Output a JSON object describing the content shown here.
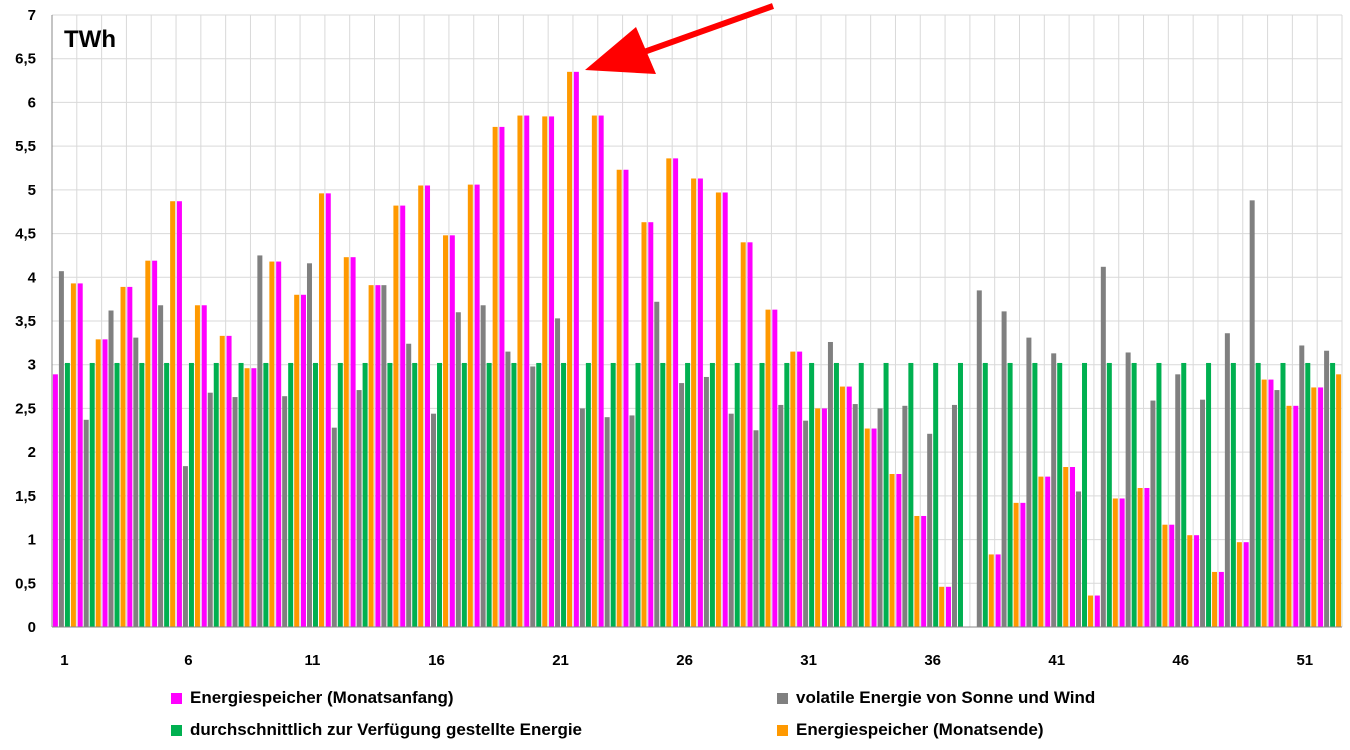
{
  "chart_data": {
    "type": "bar",
    "unit_label": "TWh",
    "ylim": [
      0,
      7
    ],
    "y_ticks": [
      "0",
      "0,5",
      "1",
      "1,5",
      "2",
      "2,5",
      "3",
      "3,5",
      "4",
      "4,5",
      "5",
      "5,5",
      "6",
      "6,5",
      "7"
    ],
    "x_tick_labels": [
      "1",
      "6",
      "11",
      "16",
      "21",
      "26",
      "31",
      "36",
      "41",
      "46",
      "51"
    ],
    "categories": [
      1,
      2,
      3,
      4,
      5,
      6,
      7,
      8,
      9,
      10,
      11,
      12,
      13,
      14,
      15,
      16,
      17,
      18,
      19,
      20,
      21,
      22,
      23,
      24,
      25,
      26,
      27,
      28,
      29,
      30,
      31,
      32,
      33,
      34,
      35,
      36,
      37,
      38,
      39,
      40,
      41,
      42,
      43,
      44,
      45,
      46,
      47,
      48,
      49,
      50,
      51,
      52
    ],
    "grid": true,
    "legend_position": "bottom",
    "annotation": "red arrow pointing to peak at week 22",
    "series": [
      {
        "name": "Energiespeicher (Monatsanfang)",
        "color": "#FF00FF",
        "values": [
          2.89,
          3.93,
          3.29,
          3.89,
          4.19,
          4.87,
          3.68,
          3.33,
          2.96,
          4.18,
          3.8,
          4.96,
          4.23,
          3.91,
          4.82,
          5.05,
          4.48,
          5.06,
          5.72,
          5.85,
          5.84,
          6.35,
          5.85,
          5.23,
          4.63,
          5.36,
          5.13,
          4.97,
          4.4,
          3.63,
          3.15,
          2.5,
          2.75,
          2.27,
          1.75,
          1.27,
          0.46,
          0,
          0.83,
          1.42,
          1.72,
          1.83,
          0.36,
          1.47,
          1.59,
          1.17,
          1.05,
          0.63,
          0.97,
          2.83,
          2.53,
          2.74
        ]
      },
      {
        "name": "volatile Energie von Sonne und Wind",
        "color": "#808080",
        "values": [
          4.07,
          2.37,
          3.62,
          3.31,
          3.68,
          1.84,
          2.68,
          2.63,
          4.25,
          2.64,
          4.16,
          2.28,
          2.71,
          3.91,
          3.24,
          2.44,
          3.6,
          3.68,
          3.15,
          2.98,
          3.53,
          2.5,
          2.4,
          2.42,
          3.72,
          2.79,
          2.86,
          2.44,
          2.25,
          2.54,
          2.36,
          3.26,
          2.55,
          2.5,
          2.53,
          2.21,
          2.54,
          3.85,
          3.61,
          3.31,
          3.13,
          1.55,
          4.12,
          3.14,
          2.59,
          2.89,
          2.6,
          3.36,
          4.88,
          2.71,
          3.22,
          3.16
        ]
      },
      {
        "name": "durchschnittlich zur Verfügung gestellte Energie",
        "color": "#00B050",
        "values": [
          3.02,
          3.02,
          3.02,
          3.02,
          3.02,
          3.02,
          3.02,
          3.02,
          3.02,
          3.02,
          3.02,
          3.02,
          3.02,
          3.02,
          3.02,
          3.02,
          3.02,
          3.02,
          3.02,
          3.02,
          3.02,
          3.02,
          3.02,
          3.02,
          3.02,
          3.02,
          3.02,
          3.02,
          3.02,
          3.02,
          3.02,
          3.02,
          3.02,
          3.02,
          3.02,
          3.02,
          3.02,
          3.02,
          3.02,
          3.02,
          3.02,
          3.02,
          3.02,
          3.02,
          3.02,
          3.02,
          3.02,
          3.02,
          3.02,
          3.02,
          3.02,
          3.02
        ]
      },
      {
        "name": "Energiespeicher (Monatsende)",
        "color": "#FF9900",
        "values": [
          3.93,
          3.29,
          3.89,
          4.19,
          4.87,
          3.68,
          3.33,
          2.96,
          4.18,
          3.8,
          4.96,
          4.23,
          3.91,
          4.82,
          5.05,
          4.48,
          5.06,
          5.72,
          5.85,
          5.84,
          6.35,
          5.85,
          5.23,
          4.63,
          5.36,
          5.13,
          4.97,
          4.4,
          3.63,
          3.15,
          2.5,
          2.75,
          2.27,
          1.75,
          1.27,
          0.46,
          0,
          0.83,
          1.42,
          1.72,
          1.83,
          0.36,
          1.47,
          1.59,
          1.17,
          1.05,
          0.63,
          0.97,
          2.83,
          2.53,
          2.74,
          2.89
        ]
      }
    ]
  }
}
